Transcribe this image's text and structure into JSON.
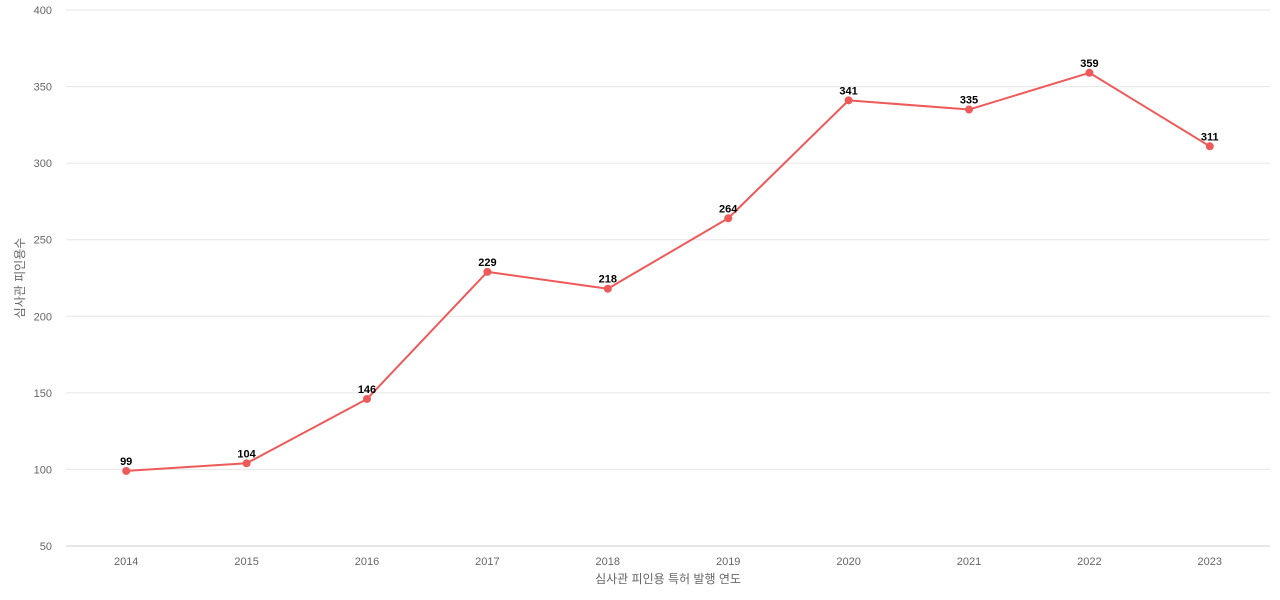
{
  "chart_data": {
    "type": "line",
    "title": "",
    "xlabel": "심사관 피인용 특허 발행 연도",
    "ylabel": "심사관 피인용수",
    "categories": [
      "2014",
      "2015",
      "2016",
      "2017",
      "2018",
      "2019",
      "2020",
      "2021",
      "2022",
      "2023"
    ],
    "series": [
      {
        "values": [
          99,
          104,
          146,
          229,
          218,
          264,
          341,
          335,
          359,
          311
        ],
        "color": "#ee5a5a"
      }
    ],
    "ylim": [
      50,
      400
    ],
    "yticks": [
      50,
      100,
      150,
      200,
      250,
      300,
      350,
      400
    ],
    "grid": true,
    "legend": "none",
    "data_labels": true
  }
}
